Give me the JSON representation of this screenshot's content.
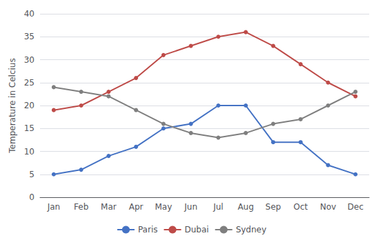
{
  "chart_data": {
    "type": "line",
    "categories": [
      "Jan",
      "Feb",
      "Mar",
      "Apr",
      "May",
      "Jun",
      "Jul",
      "Aug",
      "Sep",
      "Oct",
      "Nov",
      "Dec"
    ],
    "series": [
      {
        "name": "Paris",
        "color": "#4472C4",
        "values": [
          5,
          6,
          9,
          11,
          15,
          16,
          20,
          20,
          12,
          12,
          7,
          5
        ]
      },
      {
        "name": "Dubai",
        "color": "#BE4B48",
        "values": [
          19,
          20,
          23,
          26,
          31,
          33,
          35,
          36,
          33,
          29,
          25,
          22
        ]
      },
      {
        "name": "Sydney",
        "color": "#7F7F7F",
        "values": [
          24,
          23,
          22,
          19,
          16,
          14,
          13,
          14,
          16,
          17,
          20,
          23
        ]
      }
    ],
    "ylabel": "Temperature in Celcius",
    "ylim": [
      0,
      40
    ],
    "yticks": [
      0,
      5,
      10,
      15,
      20,
      25,
      30,
      35,
      40
    ],
    "grid": true,
    "legend": "bottom",
    "marker": "circle"
  }
}
